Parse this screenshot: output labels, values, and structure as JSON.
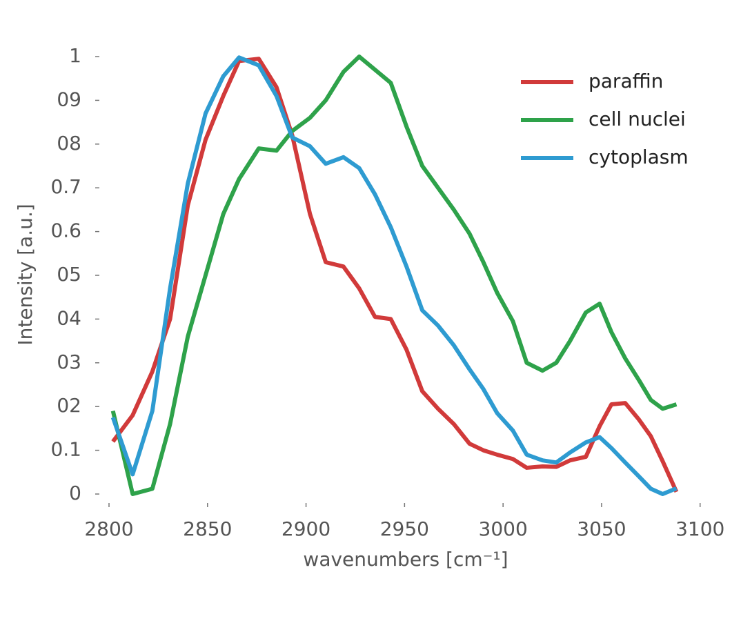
{
  "chart_data": {
    "type": "line",
    "xlabel": "wavenumbers [cm⁻¹]",
    "ylabel": "Intensity [a.u.]",
    "x": [
      2802,
      2812,
      2822,
      2831,
      2840,
      2849,
      2858,
      2866,
      2876,
      2885,
      2893,
      2902,
      2910,
      2919,
      2927,
      2935,
      2943,
      2951,
      2959,
      2967,
      2975,
      2983,
      2990,
      2997,
      3005,
      3012,
      3020,
      3027,
      3034,
      3042,
      3049,
      3055,
      3062,
      3069,
      3075,
      3081,
      3088
    ],
    "series": [
      {
        "name": "paraffin",
        "color": "#d13a3a",
        "values": [
          0.12,
          0.18,
          0.28,
          0.4,
          0.66,
          0.81,
          0.91,
          0.99,
          0.995,
          0.93,
          0.82,
          0.64,
          0.53,
          0.52,
          0.47,
          0.405,
          0.4,
          0.33,
          0.235,
          0.195,
          0.16,
          0.115,
          0.1,
          0.09,
          0.08,
          0.06,
          0.063,
          0.062,
          0.077,
          0.085,
          0.155,
          0.205,
          0.208,
          0.17,
          0.132,
          0.075,
          0.005
        ]
      },
      {
        "name": "cell nuclei",
        "color": "#2ea24a",
        "values": [
          0.19,
          0.0,
          0.012,
          0.16,
          0.36,
          0.5,
          0.64,
          0.72,
          0.79,
          0.785,
          0.83,
          0.86,
          0.9,
          0.965,
          1.0,
          0.97,
          0.94,
          0.84,
          0.75,
          0.7,
          0.65,
          0.595,
          0.53,
          0.46,
          0.395,
          0.3,
          0.282,
          0.3,
          0.35,
          0.415,
          0.435,
          0.37,
          0.31,
          0.26,
          0.215,
          0.195,
          0.205
        ]
      },
      {
        "name": "cytoplasm",
        "color": "#2e9bd1",
        "values": [
          0.175,
          0.045,
          0.19,
          0.47,
          0.71,
          0.87,
          0.955,
          0.998,
          0.98,
          0.91,
          0.815,
          0.795,
          0.755,
          0.77,
          0.745,
          0.685,
          0.61,
          0.52,
          0.42,
          0.385,
          0.34,
          0.285,
          0.24,
          0.185,
          0.145,
          0.09,
          0.077,
          0.072,
          0.095,
          0.118,
          0.13,
          0.105,
          0.072,
          0.04,
          0.012,
          0.0,
          0.013
        ]
      }
    ],
    "xlim": [
      2793,
      3105
    ],
    "xticks": [
      2800,
      2850,
      2900,
      2950,
      3000,
      3050,
      3100
    ],
    "ylim": [
      -0.03,
      1.03
    ],
    "yticks": [
      0,
      0.1,
      {
        "value": 0.2,
        "label": "02"
      },
      {
        "value": 0.3,
        "label": "03"
      },
      {
        "value": 0.4,
        "label": "04"
      },
      {
        "value": 0.5,
        "label": "05"
      },
      0.6,
      0.7,
      {
        "value": 0.8,
        "label": "08"
      },
      {
        "value": 0.9,
        "label": "09"
      },
      1
    ],
    "grid": false,
    "legend": "upper right"
  }
}
